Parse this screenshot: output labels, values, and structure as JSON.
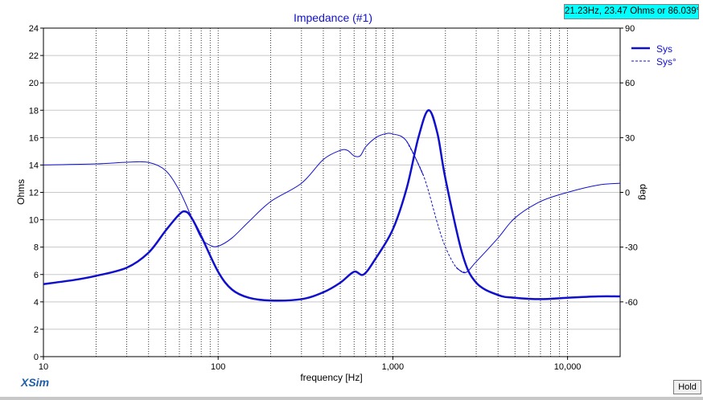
{
  "readout": "21.23Hz, 23.47 Ohms or 86.039°",
  "brand": "XSim",
  "hold_label": "Hold",
  "colors": {
    "series": "#1010cc",
    "readout_bg": "#00ffff",
    "brand": "#2060a8"
  },
  "chart_data": {
    "type": "line",
    "title": "Impedance (#1)",
    "xlabel": "frequency [Hz]",
    "ylabel": "Ohms",
    "y2label": "deg",
    "xscale": "log",
    "xlim": [
      10,
      20000
    ],
    "ylim": [
      0,
      24
    ],
    "y2lim": [
      -90,
      90
    ],
    "x_ticks": [
      10,
      100,
      1000,
      10000
    ],
    "x_tick_labels": [
      "10",
      "100",
      "1,000",
      "10,000"
    ],
    "y_ticks": [
      0,
      2,
      4,
      6,
      8,
      10,
      12,
      14,
      16,
      18,
      20,
      22,
      24
    ],
    "y2_ticks": [
      90,
      60,
      30,
      0,
      -30,
      -60
    ],
    "grid": true,
    "legend_position": "top-right",
    "series": [
      {
        "name": "Sys",
        "axis": "left",
        "style": "thick",
        "points": [
          [
            10,
            5.3
          ],
          [
            15,
            5.6
          ],
          [
            20,
            5.9
          ],
          [
            30,
            6.5
          ],
          [
            40,
            7.6
          ],
          [
            50,
            9.2
          ],
          [
            60,
            10.4
          ],
          [
            65,
            10.6
          ],
          [
            70,
            10.2
          ],
          [
            80,
            8.8
          ],
          [
            100,
            6.2
          ],
          [
            120,
            4.9
          ],
          [
            150,
            4.3
          ],
          [
            200,
            4.1
          ],
          [
            300,
            4.2
          ],
          [
            400,
            4.7
          ],
          [
            500,
            5.4
          ],
          [
            600,
            6.2
          ],
          [
            680,
            6.0
          ],
          [
            800,
            7.2
          ],
          [
            1000,
            9.3
          ],
          [
            1200,
            12.3
          ],
          [
            1400,
            16.0
          ],
          [
            1600,
            18.0
          ],
          [
            1800,
            16.3
          ],
          [
            2000,
            13.0
          ],
          [
            2500,
            7.5
          ],
          [
            3000,
            5.4
          ],
          [
            4000,
            4.5
          ],
          [
            5000,
            4.3
          ],
          [
            7000,
            4.2
          ],
          [
            10000,
            4.3
          ],
          [
            15000,
            4.4
          ],
          [
            20000,
            4.4
          ]
        ]
      },
      {
        "name": "Sys°",
        "axis": "right",
        "style": "thin",
        "points": [
          [
            10,
            15
          ],
          [
            20,
            15.6
          ],
          [
            30,
            16.5
          ],
          [
            40,
            16.4
          ],
          [
            50,
            12
          ],
          [
            60,
            1
          ],
          [
            70,
            -13
          ],
          [
            80,
            -25
          ],
          [
            90,
            -29
          ],
          [
            100,
            -29.5
          ],
          [
            120,
            -25
          ],
          [
            150,
            -16
          ],
          [
            200,
            -5
          ],
          [
            300,
            5
          ],
          [
            400,
            18
          ],
          [
            500,
            23
          ],
          [
            550,
            23
          ],
          [
            600,
            20
          ],
          [
            650,
            20
          ],
          [
            700,
            25
          ],
          [
            800,
            30
          ],
          [
            900,
            32
          ],
          [
            1000,
            32
          ],
          [
            1200,
            28
          ],
          [
            1500,
            9
          ],
          [
            1800,
            -17
          ],
          [
            2000,
            -30
          ],
          [
            2300,
            -41
          ],
          [
            2600,
            -44
          ],
          [
            3000,
            -38
          ],
          [
            4000,
            -25
          ],
          [
            5000,
            -14
          ],
          [
            7000,
            -5
          ],
          [
            10000,
            0
          ],
          [
            15000,
            4
          ],
          [
            20000,
            5
          ]
        ]
      }
    ]
  }
}
